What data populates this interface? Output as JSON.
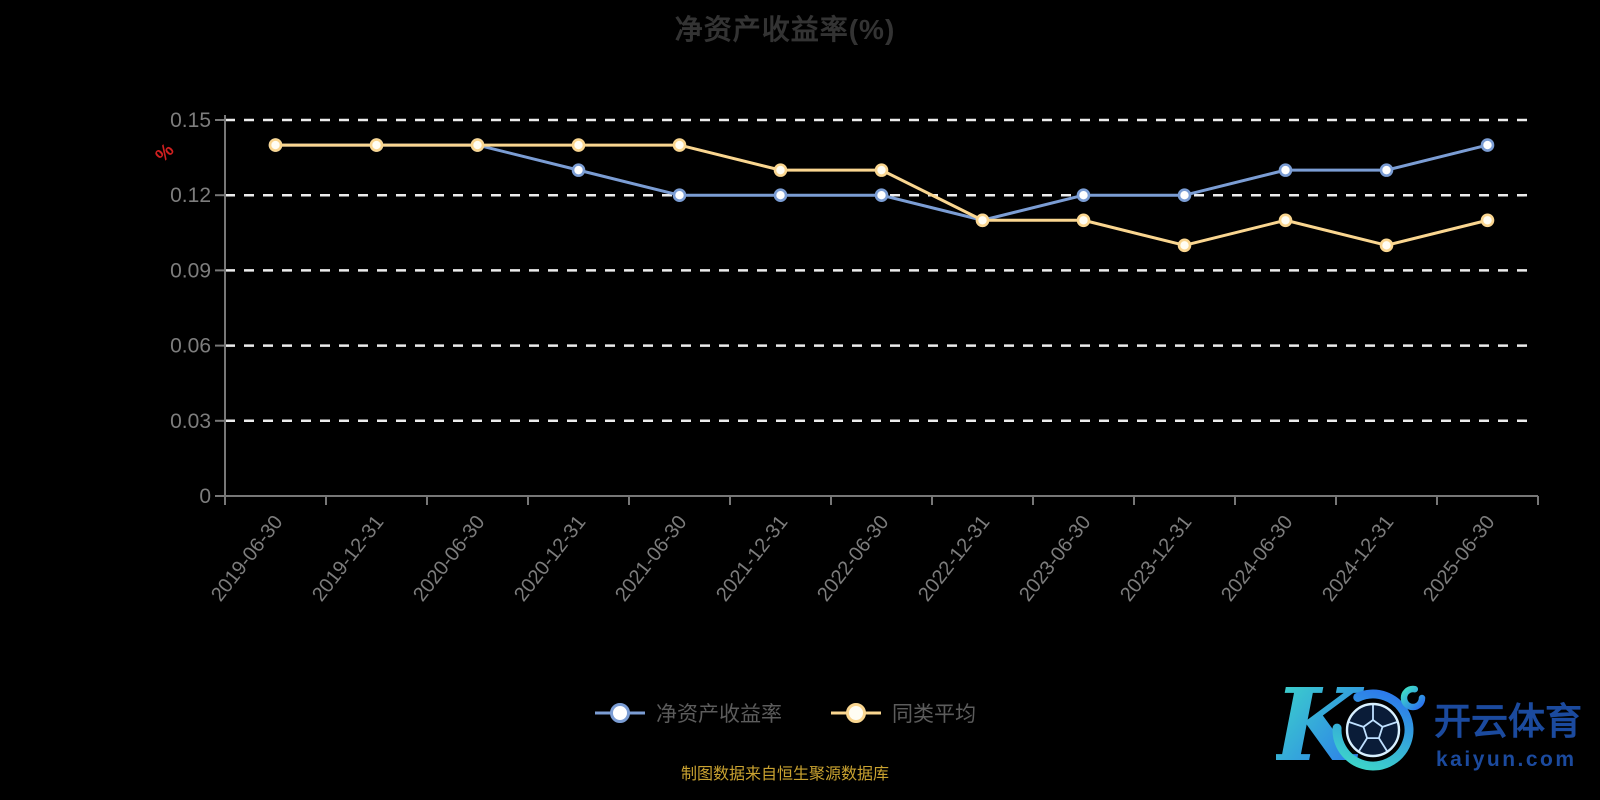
{
  "title": "净资产收益率(%)",
  "caption": "制图数据来自恒生聚源数据库",
  "chart_data": {
    "type": "line",
    "title": "净资产收益率(%)",
    "y_unit": "%",
    "y_unit_color": "#d02020",
    "categories": [
      "2019-06-30",
      "2019-12-31",
      "2020-06-30",
      "2020-12-31",
      "2021-06-30",
      "2021-12-31",
      "2022-06-30",
      "2022-12-31",
      "2023-06-30",
      "2023-12-31",
      "2024-06-30",
      "2024-12-31",
      "2025-06-30"
    ],
    "series": [
      {
        "name": "净资产收益率",
        "color": "#7b9dd4",
        "marker_fill": "#ffffff",
        "values": [
          0.14,
          0.14,
          0.14,
          0.13,
          0.12,
          0.12,
          0.12,
          0.11,
          0.12,
          0.12,
          0.13,
          0.13,
          0.14
        ]
      },
      {
        "name": "同类平均",
        "color": "#fad690",
        "marker_fill": "#fffdf3",
        "values": [
          0.14,
          0.14,
          0.14,
          0.14,
          0.14,
          0.13,
          0.13,
          0.11,
          0.11,
          0.1,
          0.11,
          0.1,
          0.11
        ]
      }
    ],
    "ylim": [
      0,
      0.15
    ],
    "y_ticks": [
      0,
      0.03,
      0.06,
      0.09,
      0.12,
      0.15
    ],
    "y_tick_labels": [
      "0",
      "0.03",
      "0.06",
      "0.09",
      "0.12",
      "0.15"
    ],
    "grid": "horizontal-dashed-white",
    "legend_position": "bottom",
    "axis_color": "#777777",
    "label_color": "#7d7d7d",
    "grid_color": "#ececec"
  },
  "legend": {
    "items": [
      {
        "label": "净资产收益率",
        "color": "#7b9dd4",
        "marker_fill": "#ffffff"
      },
      {
        "label": "同类平均",
        "color": "#fad690",
        "marker_fill": "#fffdf3"
      }
    ]
  },
  "watermark": {
    "cn": "开云体育",
    "domain": "kaiyun.com"
  }
}
